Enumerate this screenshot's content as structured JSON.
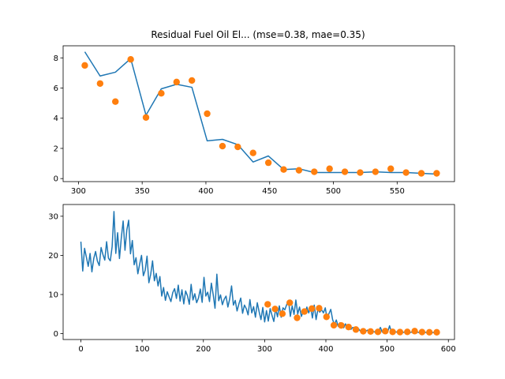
{
  "chart_data": [
    {
      "type": "line",
      "title": "Residual Fuel Oil El... (mse=0.38, mae=0.35)",
      "xlim": [
        288,
        595
      ],
      "ylim": [
        -0.2,
        8.8
      ],
      "xticks": [
        300,
        350,
        400,
        450,
        500,
        550
      ],
      "yticks": [
        0,
        2,
        4,
        6,
        8
      ],
      "grid": false,
      "legend": "none",
      "series": [
        {
          "kind": "line",
          "color": "#1f77b4",
          "x": [
            305,
            317,
            329,
            341,
            353,
            365,
            377,
            389,
            401,
            413,
            425,
            437,
            449,
            461,
            473,
            485,
            497,
            509,
            521,
            533,
            545,
            557,
            569,
            581
          ],
          "y": [
            8.4,
            6.8,
            7.05,
            7.95,
            4.2,
            5.95,
            6.25,
            6.05,
            2.5,
            2.6,
            2.25,
            1.1,
            1.5,
            0.6,
            0.65,
            0.4,
            0.4,
            0.4,
            0.4,
            0.45,
            0.4,
            0.4,
            0.35,
            0.3
          ]
        },
        {
          "kind": "scatter",
          "color": "#ff7f0e",
          "x": [
            305,
            317,
            329,
            341,
            353,
            365,
            377,
            389,
            401,
            413,
            425,
            437,
            449,
            461,
            473,
            485,
            497,
            509,
            521,
            533,
            545,
            557,
            569,
            581
          ],
          "y": [
            7.5,
            6.3,
            5.1,
            7.9,
            4.05,
            5.65,
            6.4,
            6.5,
            4.3,
            2.15,
            2.1,
            1.7,
            1.05,
            0.6,
            0.55,
            0.45,
            0.65,
            0.45,
            0.4,
            0.45,
            0.65,
            0.4,
            0.35,
            0.35
          ]
        }
      ]
    },
    {
      "type": "line",
      "title": "",
      "xlim": [
        -29,
        610
      ],
      "ylim": [
        -1.5,
        33
      ],
      "xticks": [
        0,
        100,
        200,
        300,
        400,
        500,
        600
      ],
      "yticks": [
        0,
        10,
        20,
        30
      ],
      "grid": false,
      "legend": "none",
      "series": [
        {
          "kind": "line",
          "color": "#1f77b4",
          "x_start": 0,
          "x_step": 3,
          "y": [
            23.5,
            16,
            21.8,
            19.5,
            17.2,
            20.5,
            15.8,
            19.2,
            21,
            18.5,
            17.4,
            22,
            20.2,
            18.8,
            23.5,
            19.3,
            18.6,
            22.2,
            31.2,
            20.5,
            25.8,
            19.2,
            24.5,
            28.8,
            21.3,
            26.5,
            29,
            20.4,
            23.8,
            17.6,
            19.4,
            15.3,
            17.8,
            20,
            14.8,
            16.2,
            19.8,
            13,
            15.2,
            18.6,
            13.5,
            15.4,
            12.2,
            14.6,
            9.6,
            11.8,
            8.5,
            10.7,
            9.4,
            8.2,
            10.5,
            11.5,
            9,
            12.4,
            8.3,
            11.2,
            7.6,
            10.9,
            9.7,
            7.5,
            12.6,
            8.6,
            10.2,
            7.9,
            9.1,
            11.4,
            8,
            14.4,
            9.6,
            10.6,
            8.2,
            12.9,
            10,
            6.5,
            15.2,
            8.4,
            9.9,
            7.4,
            8.8,
            9.6,
            6.8,
            8.9,
            12.2,
            7.3,
            8.5,
            5.8,
            7.6,
            9.1,
            5.2,
            7.3,
            6.4,
            4.8,
            8.7,
            5.3,
            6.9,
            4.2,
            7.9,
            5.6,
            3.6,
            6.7,
            3,
            5.9,
            3.2,
            6.4,
            4.7,
            3.1,
            6.4,
            4.3,
            7.1,
            4.2,
            6.6,
            6.1,
            7.4,
            8.4,
            4.4,
            7.1,
            4.9,
            8.6,
            5,
            6.8,
            4.4,
            5.7,
            5.2,
            6.8,
            5.3,
            6.9,
            4,
            7.3,
            3.6,
            6.2,
            5.5,
            6.1,
            5.3,
            6.6,
            3.8,
            5.1,
            6.2,
            3.6,
            2.3,
            3.5,
            1.9,
            2.8,
            2.2,
            1.5,
            2.5,
            1.3,
            2.1,
            1.1,
            1.6,
            1.4,
            0.9,
            1.3,
            0.7,
            1.1,
            0.8,
            0.6,
            0.9,
            0.5,
            0.8,
            0.6,
            0.4,
            0.7,
            0.5,
            1.6,
            0.4,
            0.6,
            1.2,
            0.5,
            2,
            0.4,
            0.3,
            0.5,
            0.4,
            0.3,
            0.5,
            0.3,
            0.4,
            0.3,
            0.5,
            0.3,
            0.4,
            0.3,
            0.3,
            0.4,
            0.3,
            0.3,
            0.3,
            0.4,
            0.3,
            0.3,
            0.3,
            0.3,
            0.3
          ]
        },
        {
          "kind": "scatter",
          "color": "#ff7f0e",
          "x": [
            305,
            317,
            329,
            341,
            353,
            365,
            377,
            389,
            401,
            413,
            425,
            437,
            449,
            461,
            473,
            485,
            497,
            509,
            521,
            533,
            545,
            557,
            569,
            581
          ],
          "y": [
            7.5,
            6.3,
            5.1,
            7.9,
            4.05,
            5.65,
            6.4,
            6.5,
            4.3,
            2.15,
            2.1,
            1.7,
            1.05,
            0.6,
            0.55,
            0.45,
            0.65,
            0.45,
            0.4,
            0.45,
            0.65,
            0.4,
            0.35,
            0.35
          ]
        }
      ]
    }
  ]
}
